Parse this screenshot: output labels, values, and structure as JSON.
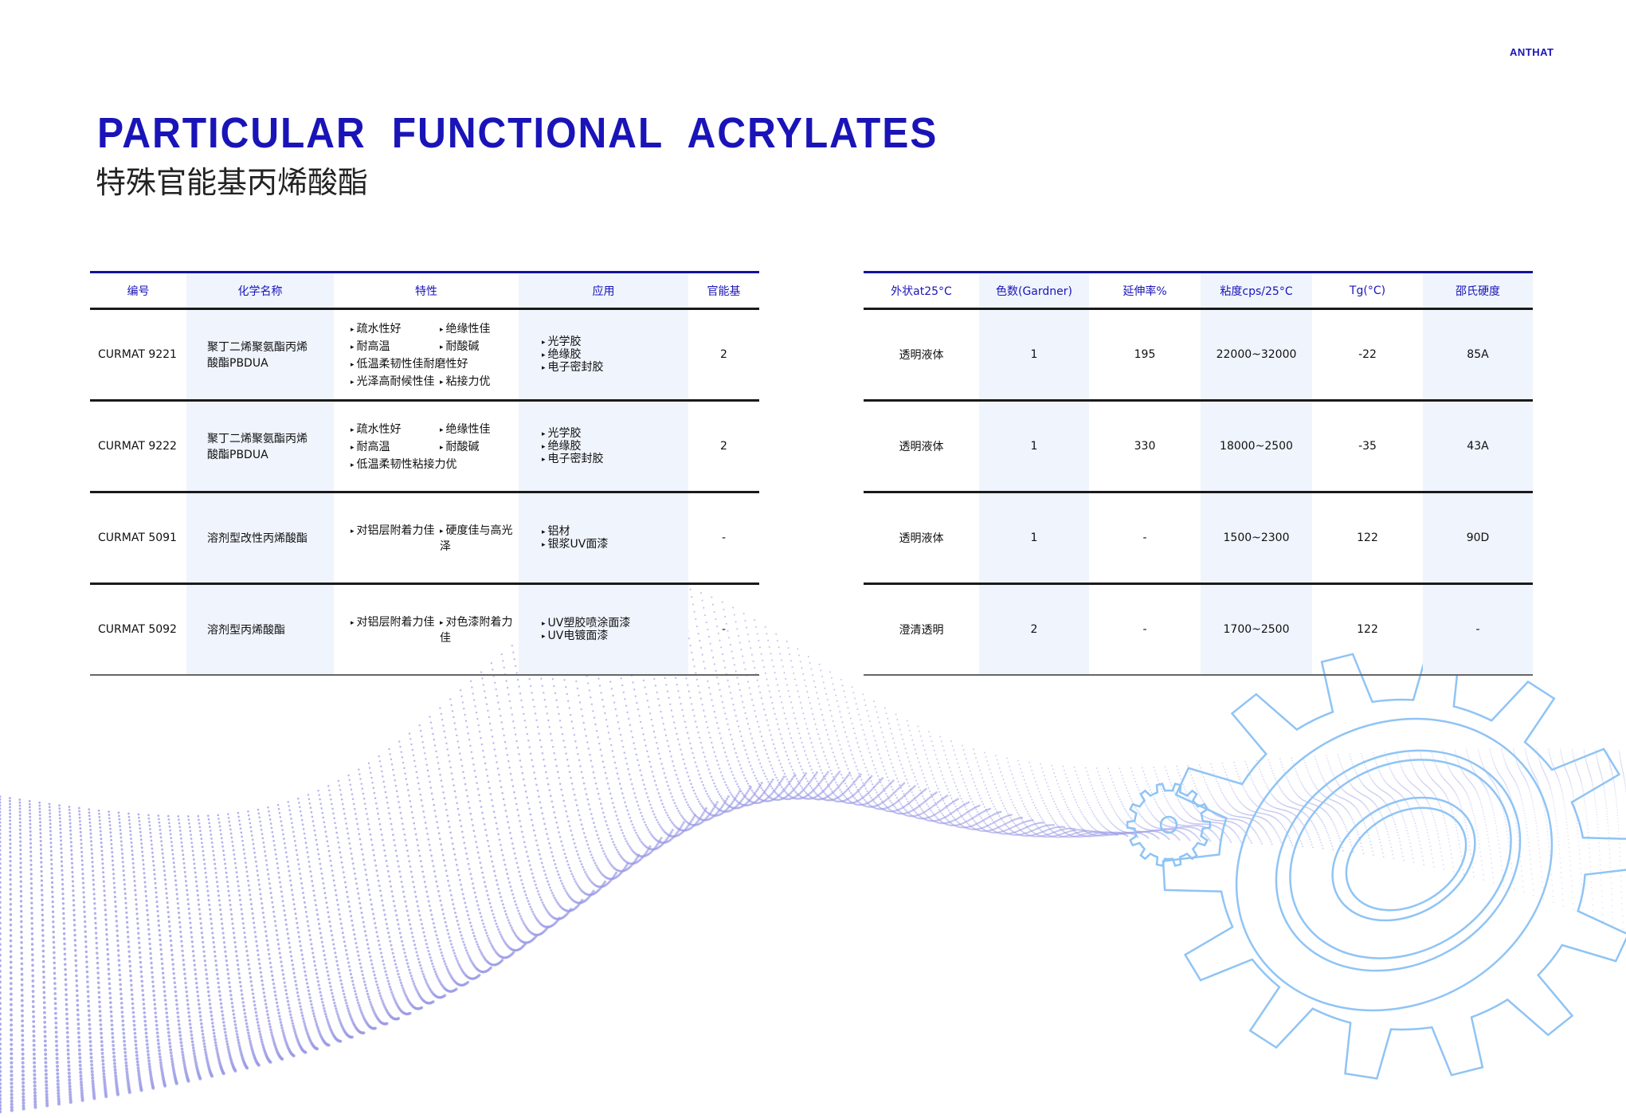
{
  "brand": "ANTHAT",
  "title": "PARTICULAR FUNCTIONAL ACRYLATES",
  "subtitle": "特殊官能基丙烯酸酯",
  "colors": {
    "accent": "#1a14b8",
    "shade": "#eff4fd",
    "dots": "#8c8ce0",
    "gear": "#8fc4f5"
  },
  "left_table": {
    "headers": [
      "编号",
      "化学名称",
      "特性",
      "应用",
      "官能基"
    ],
    "rows": [
      {
        "code": "CURMAT 9221",
        "name": "聚丁二烯聚氨酯丙烯酸酯PBDUA",
        "props": [
          "疏水性好",
          "绝缘性佳",
          "耐高温",
          "耐酸碱",
          "低温柔韧性佳耐磨性好",
          "光泽高耐候性佳",
          "粘接力优"
        ],
        "apps": [
          "光学胶",
          "绝缘胶",
          "电子密封胶"
        ],
        "func": "2"
      },
      {
        "code": "CURMAT 9222",
        "name": "聚丁二烯聚氨酯丙烯酸酯PBDUA",
        "props": [
          "疏水性好",
          "绝缘性佳",
          "耐高温",
          "耐酸碱",
          "低温柔韧性粘接力优"
        ],
        "apps": [
          "光学胶",
          "绝缘胶",
          "电子密封胶"
        ],
        "func": "2"
      },
      {
        "code": "CURMAT 5091",
        "name": "溶剂型改性丙烯酸酯",
        "props": [
          "对铝层附着力佳",
          "硬度佳与高光泽"
        ],
        "apps": [
          "铝材",
          "银浆UV面漆"
        ],
        "func": "-"
      },
      {
        "code": "CURMAT 5092",
        "name": "溶剂型丙烯酸酯",
        "props": [
          "对铝层附着力佳",
          "对色漆附着力佳"
        ],
        "apps": [
          "UV塑胶喷涂面漆",
          "UV电镀面漆"
        ],
        "func": "-"
      }
    ]
  },
  "right_table": {
    "headers": [
      "外状at25°C",
      "色数(Gardner)",
      "延伸率%",
      "粘度cps/25°C",
      "Tg(°C)",
      "邵氏硬度"
    ],
    "rows": [
      [
        "透明液体",
        "1",
        "195",
        "22000~32000",
        "-22",
        "85A"
      ],
      [
        "透明液体",
        "1",
        "330",
        "18000~2500",
        "-35",
        "43A"
      ],
      [
        "透明液体",
        "1",
        "-",
        "1500~2300",
        "122",
        "90D"
      ],
      [
        "澄清透明",
        "2",
        "-",
        "1700~2500",
        "122",
        "-"
      ]
    ]
  }
}
